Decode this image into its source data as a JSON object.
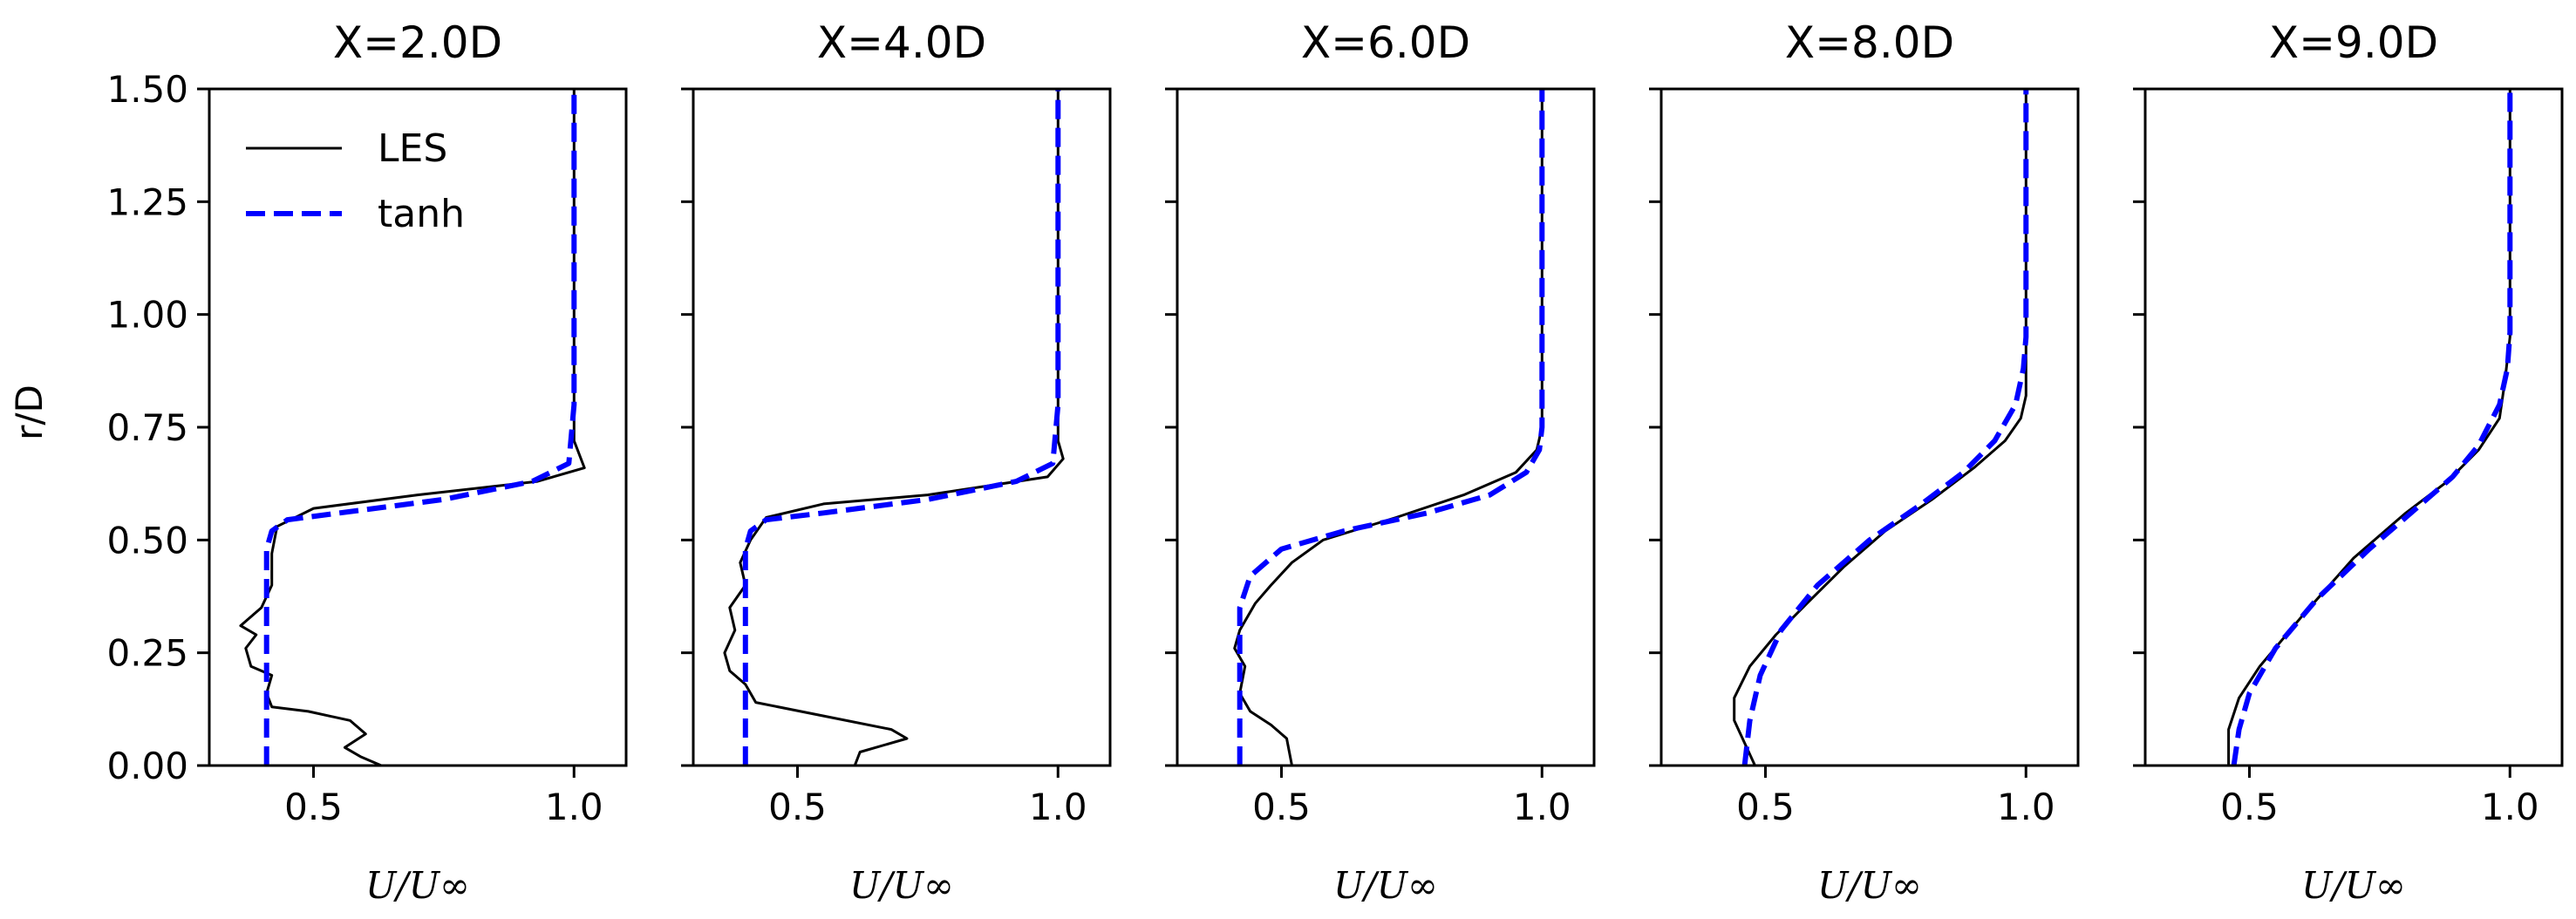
{
  "figure": {
    "ylabel": "r/D",
    "xlabel": "U/U∞",
    "x_tick_labels": [
      "0.5",
      "1.0"
    ],
    "y_tick_labels": [
      "0.00",
      "0.25",
      "0.50",
      "0.75",
      "1.00",
      "1.25",
      "1.50"
    ]
  },
  "legend": {
    "entries": [
      {
        "label": "LES",
        "color": "#000000",
        "style": "solid"
      },
      {
        "label": "tanh",
        "color": "#0000ff",
        "style": "dashed"
      }
    ]
  },
  "chart_data": [
    {
      "type": "line",
      "title": "X=2.0D",
      "xlabel": "U/U∞",
      "ylabel": "r/D",
      "xlim": [
        0.3,
        1.1
      ],
      "ylim": [
        0,
        1.5
      ],
      "xticks": [
        0.5,
        1.0
      ],
      "yticks": [
        0,
        0.25,
        0.5,
        0.75,
        1.0,
        1.25,
        1.5
      ],
      "series": [
        {
          "name": "LES",
          "color": "#000000",
          "x": [
            0.63,
            0.59,
            0.56,
            0.6,
            0.57,
            0.49,
            0.42,
            0.41,
            0.42,
            0.38,
            0.37,
            0.39,
            0.36,
            0.4,
            0.42,
            0.42,
            0.43,
            0.5,
            0.7,
            0.93,
            1.02,
            1.0,
            1.0,
            1.0
          ],
          "y": [
            0,
            0.02,
            0.04,
            0.07,
            0.1,
            0.12,
            0.13,
            0.16,
            0.2,
            0.22,
            0.26,
            0.29,
            0.31,
            0.35,
            0.4,
            0.47,
            0.53,
            0.57,
            0.6,
            0.63,
            0.66,
            0.72,
            1.0,
            1.5
          ],
          "style": "solid"
        },
        {
          "name": "tanh",
          "color": "#0000ff",
          "x": [
            0.41,
            0.41,
            0.41,
            0.42,
            0.45,
            0.55,
            0.75,
            0.92,
            0.99,
            1.0,
            1.0
          ],
          "y": [
            0,
            0.3,
            0.48,
            0.52,
            0.545,
            0.56,
            0.59,
            0.63,
            0.67,
            0.8,
            1.5
          ],
          "style": "dashed"
        }
      ]
    },
    {
      "type": "line",
      "title": "X=4.0D",
      "xlabel": "U/U∞",
      "ylabel": "r/D",
      "xlim": [
        0.3,
        1.1
      ],
      "ylim": [
        0,
        1.5
      ],
      "xticks": [
        0.5,
        1.0
      ],
      "yticks": [
        0,
        0.25,
        0.5,
        0.75,
        1.0,
        1.25,
        1.5
      ],
      "series": [
        {
          "name": "LES",
          "color": "#000000",
          "x": [
            0.61,
            0.62,
            0.71,
            0.68,
            0.55,
            0.42,
            0.4,
            0.37,
            0.36,
            0.38,
            0.37,
            0.4,
            0.39,
            0.41,
            0.44,
            0.55,
            0.75,
            0.98,
            1.01,
            1.0,
            1.0,
            1.0
          ],
          "y": [
            0,
            0.03,
            0.06,
            0.08,
            0.11,
            0.14,
            0.18,
            0.21,
            0.25,
            0.3,
            0.35,
            0.4,
            0.45,
            0.5,
            0.55,
            0.58,
            0.6,
            0.64,
            0.68,
            0.72,
            1.0,
            1.5
          ],
          "style": "solid"
        },
        {
          "name": "tanh",
          "color": "#0000ff",
          "x": [
            0.4,
            0.4,
            0.4,
            0.41,
            0.44,
            0.55,
            0.75,
            0.92,
            0.99,
            1.0,
            1.0
          ],
          "y": [
            0,
            0.3,
            0.48,
            0.52,
            0.545,
            0.56,
            0.59,
            0.63,
            0.67,
            0.8,
            1.5
          ],
          "style": "dashed"
        }
      ]
    },
    {
      "type": "line",
      "title": "X=6.0D",
      "xlabel": "U/U∞",
      "ylabel": "r/D",
      "xlim": [
        0.3,
        1.1
      ],
      "ylim": [
        0,
        1.5
      ],
      "xticks": [
        0.5,
        1.0
      ],
      "yticks": [
        0,
        0.25,
        0.5,
        0.75,
        1.0,
        1.25,
        1.5
      ],
      "series": [
        {
          "name": "LES",
          "color": "#000000",
          "x": [
            0.52,
            0.51,
            0.48,
            0.44,
            0.42,
            0.43,
            0.41,
            0.42,
            0.45,
            0.48,
            0.52,
            0.58,
            0.72,
            0.85,
            0.95,
            0.99,
            1.0,
            1.0,
            1.0
          ],
          "y": [
            0,
            0.06,
            0.09,
            0.12,
            0.16,
            0.22,
            0.26,
            0.3,
            0.36,
            0.4,
            0.45,
            0.5,
            0.55,
            0.6,
            0.65,
            0.7,
            0.75,
            1.0,
            1.5
          ],
          "style": "solid"
        },
        {
          "name": "tanh",
          "color": "#0000ff",
          "x": [
            0.42,
            0.42,
            0.42,
            0.44,
            0.5,
            0.62,
            0.78,
            0.9,
            0.97,
            0.995,
            1.0,
            1.0
          ],
          "y": [
            0,
            0.25,
            0.35,
            0.42,
            0.48,
            0.52,
            0.56,
            0.6,
            0.65,
            0.7,
            0.75,
            1.5
          ],
          "style": "dashed"
        }
      ]
    },
    {
      "type": "line",
      "title": "X=8.0D",
      "xlabel": "U/U∞",
      "ylabel": "r/D",
      "xlim": [
        0.3,
        1.1
      ],
      "ylim": [
        0,
        1.5
      ],
      "xticks": [
        0.5,
        1.0
      ],
      "yticks": [
        0,
        0.25,
        0.5,
        0.75,
        1.0,
        1.25,
        1.5
      ],
      "series": [
        {
          "name": "LES",
          "color": "#000000",
          "x": [
            0.48,
            0.46,
            0.44,
            0.44,
            0.47,
            0.52,
            0.58,
            0.65,
            0.73,
            0.82,
            0.9,
            0.96,
            0.99,
            1.0,
            1.0
          ],
          "y": [
            0,
            0.05,
            0.1,
            0.15,
            0.22,
            0.29,
            0.36,
            0.44,
            0.52,
            0.59,
            0.66,
            0.72,
            0.77,
            0.82,
            1.5
          ],
          "style": "solid"
        },
        {
          "name": "tanh",
          "color": "#0000ff",
          "x": [
            0.46,
            0.47,
            0.49,
            0.53,
            0.6,
            0.7,
            0.8,
            0.88,
            0.94,
            0.98,
            0.995,
            1.0,
            1.0
          ],
          "y": [
            0,
            0.1,
            0.2,
            0.3,
            0.4,
            0.5,
            0.58,
            0.65,
            0.72,
            0.8,
            0.88,
            0.95,
            1.5
          ],
          "style": "dashed"
        }
      ]
    },
    {
      "type": "line",
      "title": "X=9.0D",
      "xlabel": "U/U∞",
      "ylabel": "r/D",
      "xlim": [
        0.3,
        1.1
      ],
      "ylim": [
        0,
        1.5
      ],
      "xticks": [
        0.5,
        1.0
      ],
      "yticks": [
        0,
        0.25,
        0.5,
        0.75,
        1.0,
        1.25,
        1.5
      ],
      "series": [
        {
          "name": "LES",
          "color": "#000000",
          "x": [
            0.46,
            0.46,
            0.48,
            0.52,
            0.6,
            0.7,
            0.8,
            0.88,
            0.94,
            0.98,
            0.99,
            1.0,
            1.0
          ],
          "y": [
            0,
            0.08,
            0.15,
            0.22,
            0.33,
            0.46,
            0.56,
            0.63,
            0.7,
            0.77,
            0.85,
            0.95,
            1.5
          ],
          "style": "solid"
        },
        {
          "name": "tanh",
          "color": "#0000ff",
          "x": [
            0.47,
            0.48,
            0.5,
            0.55,
            0.63,
            0.73,
            0.82,
            0.89,
            0.94,
            0.98,
            0.995,
            1.0,
            1.0
          ],
          "y": [
            0,
            0.08,
            0.16,
            0.26,
            0.37,
            0.48,
            0.57,
            0.64,
            0.71,
            0.8,
            0.88,
            0.96,
            1.5
          ],
          "style": "dashed"
        }
      ]
    }
  ]
}
